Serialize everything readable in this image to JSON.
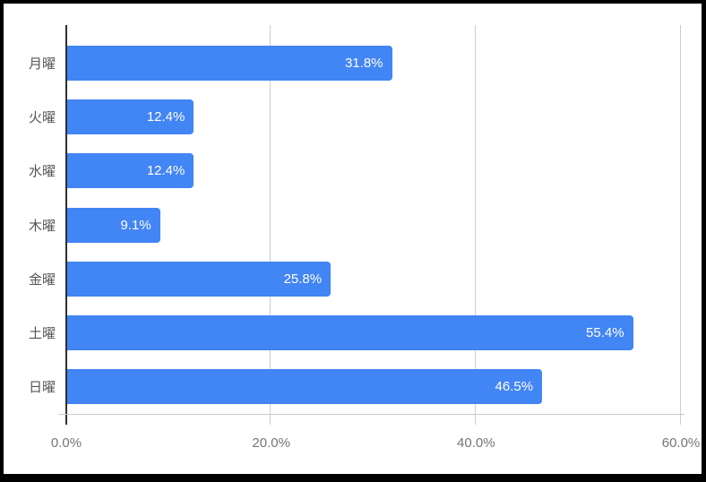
{
  "chart_data": {
    "type": "bar",
    "orientation": "horizontal",
    "title": "",
    "xlabel": "",
    "ylabel": "",
    "categories": [
      "月曜",
      "火曜",
      "水曜",
      "木曜",
      "金曜",
      "土曜",
      "日曜"
    ],
    "values": [
      31.8,
      12.4,
      12.4,
      9.1,
      25.8,
      55.4,
      46.5
    ],
    "value_labels": [
      "31.8%",
      "12.4%",
      "12.4%",
      "9.1%",
      "25.8%",
      "55.4%",
      "46.5%"
    ],
    "xlim": [
      0,
      60
    ],
    "x_ticks": [
      {
        "value": 0,
        "label": "0.0%"
      },
      {
        "value": 20,
        "label": "20.0%"
      },
      {
        "value": 40,
        "label": "40.0%"
      },
      {
        "value": 60,
        "label": "60.0%"
      }
    ],
    "grid": true,
    "legend": "none",
    "colors": {
      "bar": "#4285f4",
      "value_label": "#ffffff",
      "category_label": "#55565a",
      "tick_label": "#757575",
      "gridline": "#cccccc",
      "axis_zero_line": "#2e2e2e",
      "baseline": "#c9c9c9",
      "frame": "#000000",
      "background": "#ffffff"
    }
  }
}
